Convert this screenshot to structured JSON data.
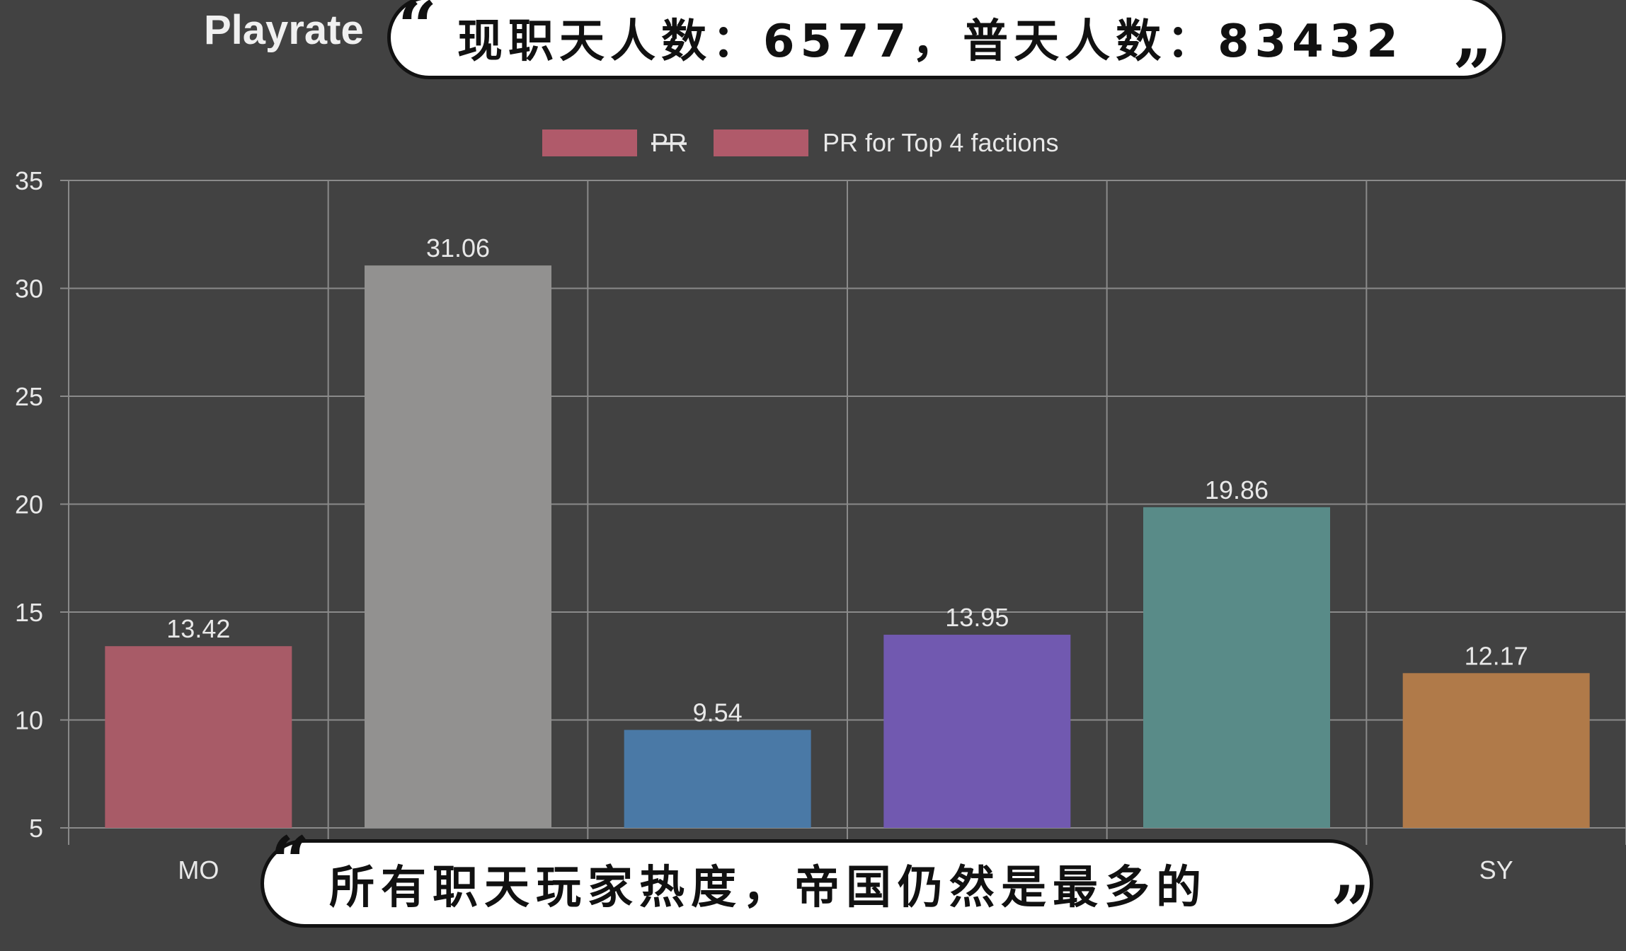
{
  "chart_data": {
    "type": "bar",
    "title": "Playrate",
    "categories": [
      "MO",
      "",
      "",
      "",
      "",
      "SY"
    ],
    "values": [
      13.42,
      31.06,
      9.54,
      13.95,
      19.86,
      12.17
    ],
    "value_labels": [
      "13.42",
      "31.06",
      "9.54",
      "13.95",
      "19.86",
      "12.17"
    ],
    "bar_colors": [
      "#a85b67",
      "#929190",
      "#4a79a6",
      "#7159b0",
      "#598b88",
      "#b07a49"
    ],
    "ylim": [
      5,
      35
    ],
    "yticks": [
      5,
      10,
      15,
      20,
      25,
      30,
      35
    ],
    "ytick_labels": [
      "5",
      "10",
      "15",
      "20",
      "25",
      "30",
      "35"
    ],
    "grid": true,
    "legend": {
      "position": "top-center",
      "entries": [
        {
          "label": "PR",
          "color": "#b05a6a",
          "struck": true
        },
        {
          "label": "PR for Top 4 factions",
          "color": "#b05a6a",
          "struck": false
        }
      ]
    }
  },
  "captions": {
    "top": "现职天人数：6577，普天人数：83432",
    "bottom": "所有职天玩家热度，帝国仍然是最多的",
    "open_quote": "“",
    "close_quote": "”"
  },
  "colors": {
    "background": "#424242",
    "grid": "#8a8a8a",
    "text": "#e8e8e8",
    "caption_bg": "#ffffff",
    "caption_text": "#111111"
  }
}
